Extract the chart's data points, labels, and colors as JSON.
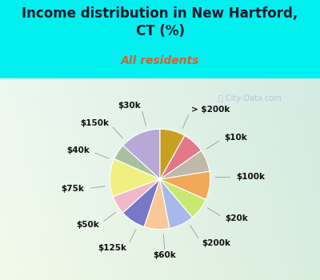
{
  "title": "Income distribution in New Hartford,\nCT (%)",
  "subtitle": "All residents",
  "title_color": "#1a1a2e",
  "subtitle_color": "#cc6633",
  "background_color": "#00f0f0",
  "watermark": "ⓘ City-Data.com",
  "labels": [
    "> $200k",
    "$10k",
    "$100k",
    "$20k",
    "$200k",
    "$60k",
    "$125k",
    "$50k",
    "$75k",
    "$40k",
    "$150k",
    "$30k"
  ],
  "values": [
    13,
    5,
    12,
    6,
    8,
    8,
    8,
    7,
    9,
    7,
    7,
    8
  ],
  "colors": [
    "#b8a8d8",
    "#a8c0a0",
    "#f0f080",
    "#f0b8c8",
    "#7878c8",
    "#f8c898",
    "#a8b8e8",
    "#c8e870",
    "#f0a858",
    "#c0b8a8",
    "#e07888",
    "#c8a020"
  ],
  "label_fontsize": 7.5,
  "title_fontsize": 12,
  "subtitle_fontsize": 10,
  "startangle": 90
}
